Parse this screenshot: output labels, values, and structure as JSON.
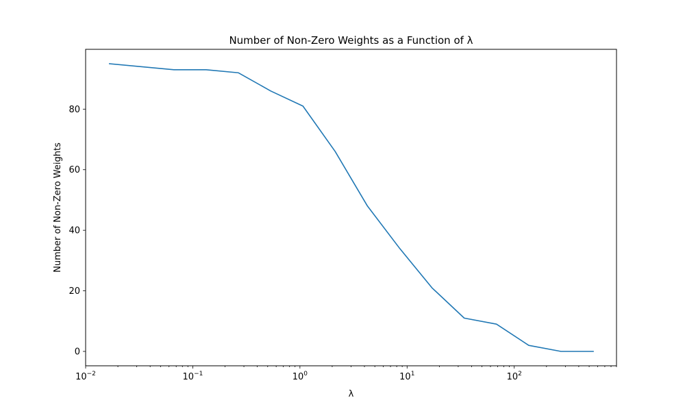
{
  "chart_data": {
    "type": "line",
    "title": "Number of Non-Zero Weights as a Function of λ",
    "xlabel": "λ",
    "ylabel": "Number of Non-Zero Weights",
    "xscale": "log",
    "xlim": [
      0.01,
      900
    ],
    "ylim": [
      -4.75,
      99.75
    ],
    "grid": false,
    "x_tick_values": [
      0.01,
      0.1,
      1,
      10,
      100
    ],
    "x_tick_labels": [
      {
        "base": "10",
        "exp": "−2"
      },
      {
        "base": "10",
        "exp": "−1"
      },
      {
        "base": "10",
        "exp": "0"
      },
      {
        "base": "10",
        "exp": "1"
      },
      {
        "base": "10",
        "exp": "2"
      }
    ],
    "y_ticks": [
      0,
      20,
      40,
      60,
      80
    ],
    "y_tick_labels": [
      "0",
      "20",
      "40",
      "60",
      "80"
    ],
    "series": [
      {
        "color": "#1f77b4",
        "x": [
          0.0167,
          0.0667,
          0.1333,
          0.2667,
          0.5333,
          1.0667,
          2.1333,
          4.2667,
          8.5333,
          17.0667,
          34.1333,
          68.2667,
          136.5333,
          273.0667,
          546.1333
        ],
        "y": [
          95,
          93,
          93,
          92,
          86,
          81,
          66,
          48,
          34,
          21,
          11,
          9,
          2,
          0,
          0
        ]
      }
    ]
  }
}
